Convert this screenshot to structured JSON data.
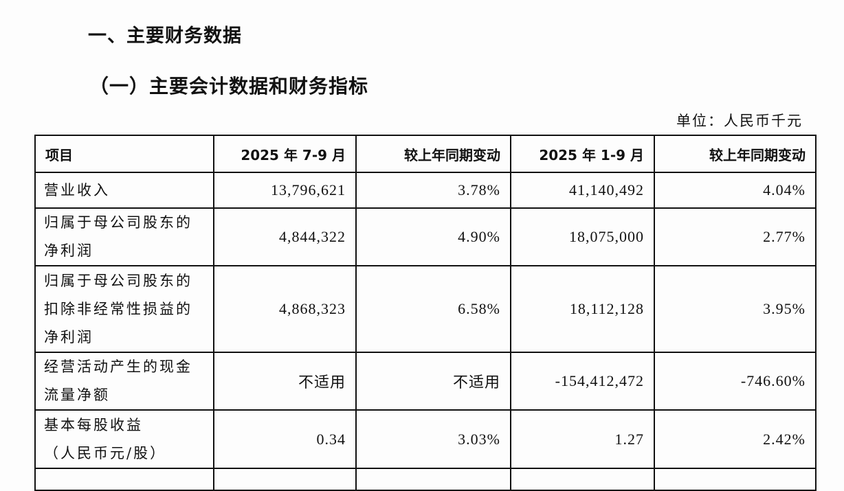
{
  "heading1": "一、主要财务数据",
  "heading2": "（一）主要会计数据和财务指标",
  "unit": "单位：人民币千元",
  "table": {
    "headers": [
      "项目",
      "2025 年 7-9 月",
      "较上年同期变动",
      "2025 年 1-9 月",
      "较上年同期变动"
    ],
    "rows": [
      {
        "item": [
          "营业收入"
        ],
        "q3": "13,796,621",
        "q3_change": "3.78%",
        "ytd": "41,140,492",
        "ytd_change": "4.04%"
      },
      {
        "item": [
          "归属于母公司股东的",
          "净利润"
        ],
        "q3": "4,844,322",
        "q3_change": "4.90%",
        "ytd": "18,075,000",
        "ytd_change": "2.77%"
      },
      {
        "item": [
          "归属于母公司股东的",
          "扣除非经常性损益的",
          "净利润"
        ],
        "q3": "4,868,323",
        "q3_change": "6.58%",
        "ytd": "18,112,128",
        "ytd_change": "3.95%"
      },
      {
        "item": [
          "经营活动产生的现金",
          "流量净额"
        ],
        "q3": "不适用",
        "q3_change": "不适用",
        "ytd": "-154,412,472",
        "ytd_change": "-746.60%"
      },
      {
        "item": [
          "基本每股收益",
          "（人民币元/股）"
        ],
        "q3": "0.34",
        "q3_change": "3.03%",
        "ytd": "1.27",
        "ytd_change": "2.42%"
      }
    ]
  }
}
